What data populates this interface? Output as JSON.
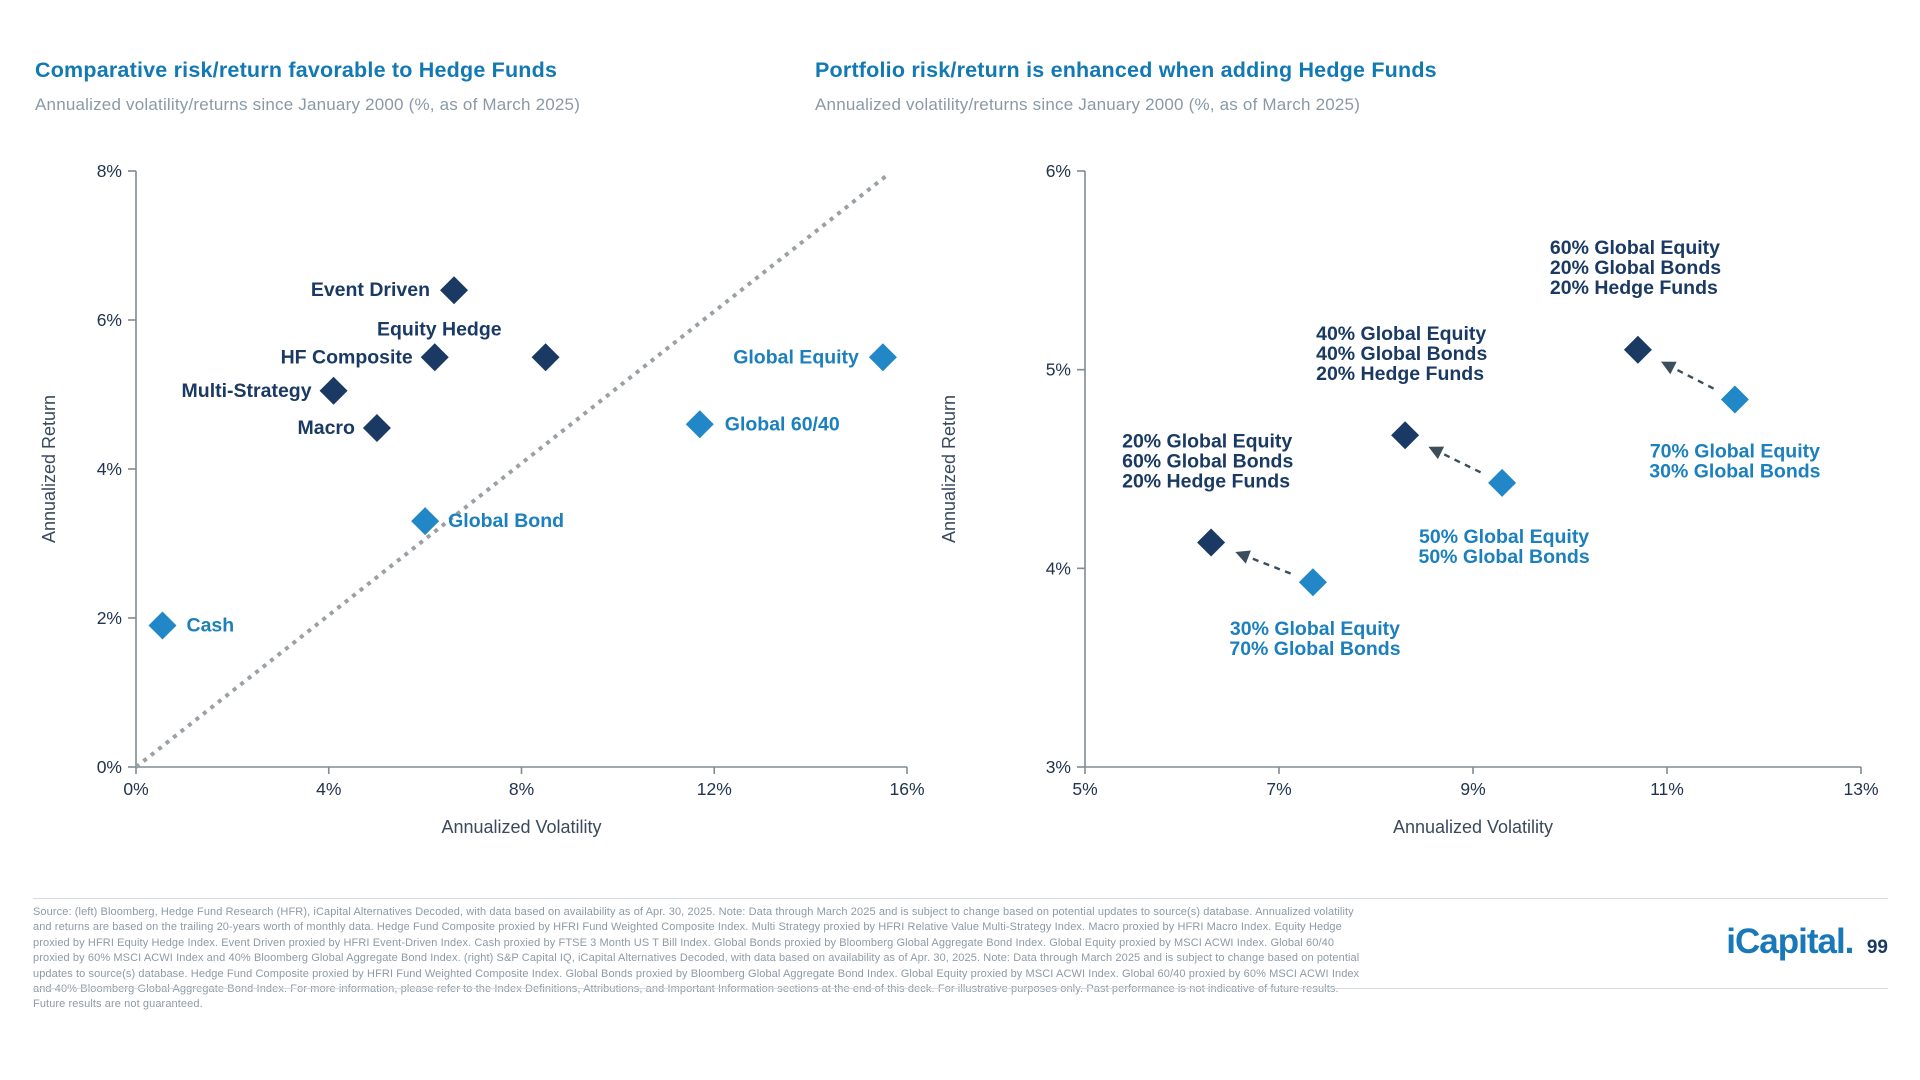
{
  "page": {
    "background": "#ffffff"
  },
  "colors": {
    "title_blue": "#1279b4",
    "subtitle_gray": "#8b99a6",
    "dark_series": "#1a3a63",
    "light_series": "#2187c6",
    "light_label": "#1b80bd",
    "axis_line": "#7f8c93",
    "tick_label": "#22344e",
    "dotted_line": "#9aa0a4",
    "arrow": "#3c4e5c",
    "footer_text": "#8d9aa6",
    "divider": "#d5dbdf",
    "logo_blue": "#1878b8",
    "page_number_navy": "#1a3a63"
  },
  "chart_data": [
    {
      "type": "scatter",
      "title": "Comparative risk/return favorable to Hedge Funds",
      "subtitle": "Annualized volatility/returns since January 2000 (%, as of March 2025)",
      "xlabel": "Annualized Volatility",
      "ylabel": "Annualized Return",
      "xlim": [
        0,
        16
      ],
      "ylim": [
        0,
        8
      ],
      "xticks": [
        0,
        4,
        8,
        12,
        16
      ],
      "yticks": [
        0,
        2,
        4,
        6,
        8
      ],
      "tick_suffix": "%",
      "grid": false,
      "legend": "none",
      "diagonal": {
        "from": [
          0,
          0
        ],
        "to": [
          15.6,
          7.95
        ],
        "style": "dotted"
      },
      "series": [
        {
          "name": "Hedge fund strategies",
          "color": "#1a3a63",
          "label_color": "#1a3a63",
          "points": [
            {
              "label": "Event Driven",
              "x": 6.6,
              "y": 6.4,
              "label_pos": {
                "anchor": "end",
                "dx": -24,
                "dy": 0
              }
            },
            {
              "label": "Equity Hedge",
              "x": 8.5,
              "y": 5.5,
              "label_pos": {
                "anchor": "end",
                "dx": -44,
                "dy": -28
              }
            },
            {
              "label": "HF Composite",
              "x": 6.2,
              "y": 5.5,
              "label_pos": {
                "anchor": "end",
                "dx": -22,
                "dy": 0
              }
            },
            {
              "label": "Multi-Strategy",
              "x": 4.1,
              "y": 5.05,
              "label_pos": {
                "anchor": "end",
                "dx": -22,
                "dy": 0
              }
            },
            {
              "label": "Macro",
              "x": 5.0,
              "y": 4.55,
              "label_pos": {
                "anchor": "end",
                "dx": -22,
                "dy": 0
              }
            }
          ]
        },
        {
          "name": "Traditional assets",
          "color": "#2187c6",
          "label_color": "#1b80bd",
          "points": [
            {
              "label": "Global Equity",
              "x": 15.5,
              "y": 5.5,
              "label_pos": {
                "anchor": "end",
                "dx": -24,
                "dy": 0
              }
            },
            {
              "label": "Global 60/40",
              "x": 11.7,
              "y": 4.6,
              "label_pos": {
                "anchor": "start",
                "dx": 25,
                "dy": 0
              }
            },
            {
              "label": "Global Bond",
              "x": 6.0,
              "y": 3.3,
              "label_pos": {
                "anchor": "start",
                "dx": 23,
                "dy": 0
              }
            },
            {
              "label": "Cash",
              "x": 0.55,
              "y": 1.9,
              "label_pos": {
                "anchor": "start",
                "dx": 24,
                "dy": 0
              }
            }
          ]
        }
      ],
      "arrows": []
    },
    {
      "type": "scatter",
      "title": "Portfolio risk/return is enhanced when adding Hedge Funds",
      "subtitle": "Annualized volatility/returns since January 2000 (%, as of March 2025)",
      "xlabel": "Annualized Volatility",
      "ylabel": "Annualized Return",
      "xlim": [
        5,
        13
      ],
      "ylim": [
        3,
        6
      ],
      "xticks": [
        5,
        7,
        9,
        11,
        13
      ],
      "yticks": [
        3,
        4,
        5,
        6
      ],
      "tick_suffix": "%",
      "grid": false,
      "legend": "none",
      "series": [
        {
          "name": "Portfolios with Hedge Funds",
          "color": "#1a3a63",
          "label_color": "#1a3a63",
          "points": [
            {
              "lines": [
                "20% Global Equity",
                "60% Global Bonds",
                "20% Hedge Funds"
              ],
              "x": 6.3,
              "y": 4.13,
              "label_pos": {
                "anchor": "start",
                "dx": -89,
                "dy": -81,
                "lh": 20
              }
            },
            {
              "lines": [
                "40% Global Equity",
                "40% Global Bonds",
                "20% Hedge Funds"
              ],
              "x": 8.3,
              "y": 4.67,
              "label_pos": {
                "anchor": "start",
                "dx": -89,
                "dy": -81,
                "lh": 20
              }
            },
            {
              "lines": [
                "60% Global Equity",
                "20% Global Bonds",
                "20% Hedge Funds"
              ],
              "x": 10.7,
              "y": 5.1,
              "label_pos": {
                "anchor": "start",
                "dx": -88,
                "dy": -82,
                "lh": 20
              }
            }
          ]
        },
        {
          "name": "Traditional portfolios",
          "color": "#2187c6",
          "label_color": "#1b80bd",
          "points": [
            {
              "lines": [
                "30% Global Equity",
                "70% Global Bonds"
              ],
              "x": 7.35,
              "y": 3.93,
              "label_pos": {
                "anchor": "middle",
                "dx": 2,
                "dy": 57,
                "lh": 20
              }
            },
            {
              "lines": [
                "50% Global Equity",
                "50% Global Bonds"
              ],
              "x": 9.3,
              "y": 4.43,
              "label_pos": {
                "anchor": "middle",
                "dx": 2,
                "dy": 64,
                "lh": 20
              }
            },
            {
              "lines": [
                "70% Global Equity",
                "30% Global Bonds"
              ],
              "x": 11.7,
              "y": 4.85,
              "label_pos": {
                "anchor": "middle",
                "dx": 0,
                "dy": 62,
                "lh": 20
              }
            }
          ]
        }
      ],
      "arrows": [
        {
          "from_series": 1,
          "from_point": 0,
          "to_series": 0,
          "to_point": 0
        },
        {
          "from_series": 1,
          "from_point": 1,
          "to_series": 0,
          "to_point": 1
        },
        {
          "from_series": 1,
          "from_point": 2,
          "to_series": 0,
          "to_point": 2
        }
      ]
    }
  ],
  "footer": {
    "lines": [
      "Source: (left) Bloomberg, Hedge Fund Research (HFR), iCapital Alternatives Decoded, with data based on availability as of Apr. 30, 2025. Note: Data through March 2025 and is subject to change based on potential updates to source(s) database. Annualized volatility and returns are based on the",
      "trailing 20-years worth of monthly data. Hedge Fund Composite proxied by HFRI Fund Weighted Composite Index. Multi Strategy proxied by HFRI Relative Value Multi-Strategy Index. Macro proxied by HFRI Macro Index. Equity Hedge proxied by HFRI Equity Hedge Index. Event Driven proxied by",
      "HFRI Event-Driven Index. Cash proxied by FTSE 3 Month US T Bill Index. Global Bonds proxied by Bloomberg Global Aggregate Bond Index. Global Equity proxied by MSCI ACWI Index. Global 60/40 proxied by 60% MSCI ACWI Index and 40% Bloomberg Global Aggregate Bond Index. (right) S&P",
      "Capital IQ, iCapital Alternatives Decoded, with data based on availability as of Apr. 30, 2025. Note: Data through March 2025 and is subject to change based on potential updates to source(s) database. Hedge Fund Composite proxied by HFRI Fund Weighted Composite Index. Global Bonds proxied",
      "by Bloomberg Global Aggregate Bond Index. Global Equity proxied by MSCI ACWI Index. Global 60/40 proxied by 60% MSCI ACWI Index and 40% Bloomberg Global Aggregate Bond Index. For more information, please refer to the Index Definitions, Attributions, and Important Information sections",
      "at the end of this deck. For illustrative purposes only. Past performance is not indicative of future results. Future results are not guaranteed."
    ],
    "logo_text": "iCapital",
    "logo_period": ".",
    "page_number": "99"
  }
}
